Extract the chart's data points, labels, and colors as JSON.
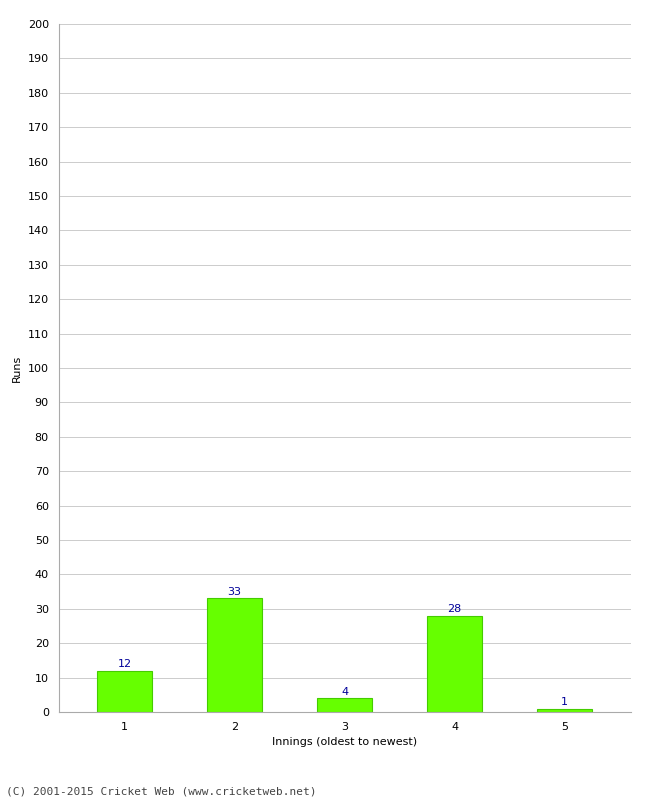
{
  "categories": [
    "1",
    "2",
    "3",
    "4",
    "5"
  ],
  "values": [
    12,
    33,
    4,
    28,
    1
  ],
  "bar_color": "#66ff00",
  "bar_edge_color": "#44cc00",
  "value_label_color": "#000099",
  "xlabel": "Innings (oldest to newest)",
  "ylabel": "Runs",
  "ylim": [
    0,
    200
  ],
  "yticks": [
    0,
    10,
    20,
    30,
    40,
    50,
    60,
    70,
    80,
    90,
    100,
    110,
    120,
    130,
    140,
    150,
    160,
    170,
    180,
    190,
    200
  ],
  "background_color": "#ffffff",
  "grid_color": "#cccccc",
  "footer_text": "(C) 2001-2015 Cricket Web (www.cricketweb.net)",
  "value_label_fontsize": 8,
  "axis_label_fontsize": 8,
  "tick_label_fontsize": 8,
  "footer_fontsize": 8,
  "bar_width": 0.5
}
